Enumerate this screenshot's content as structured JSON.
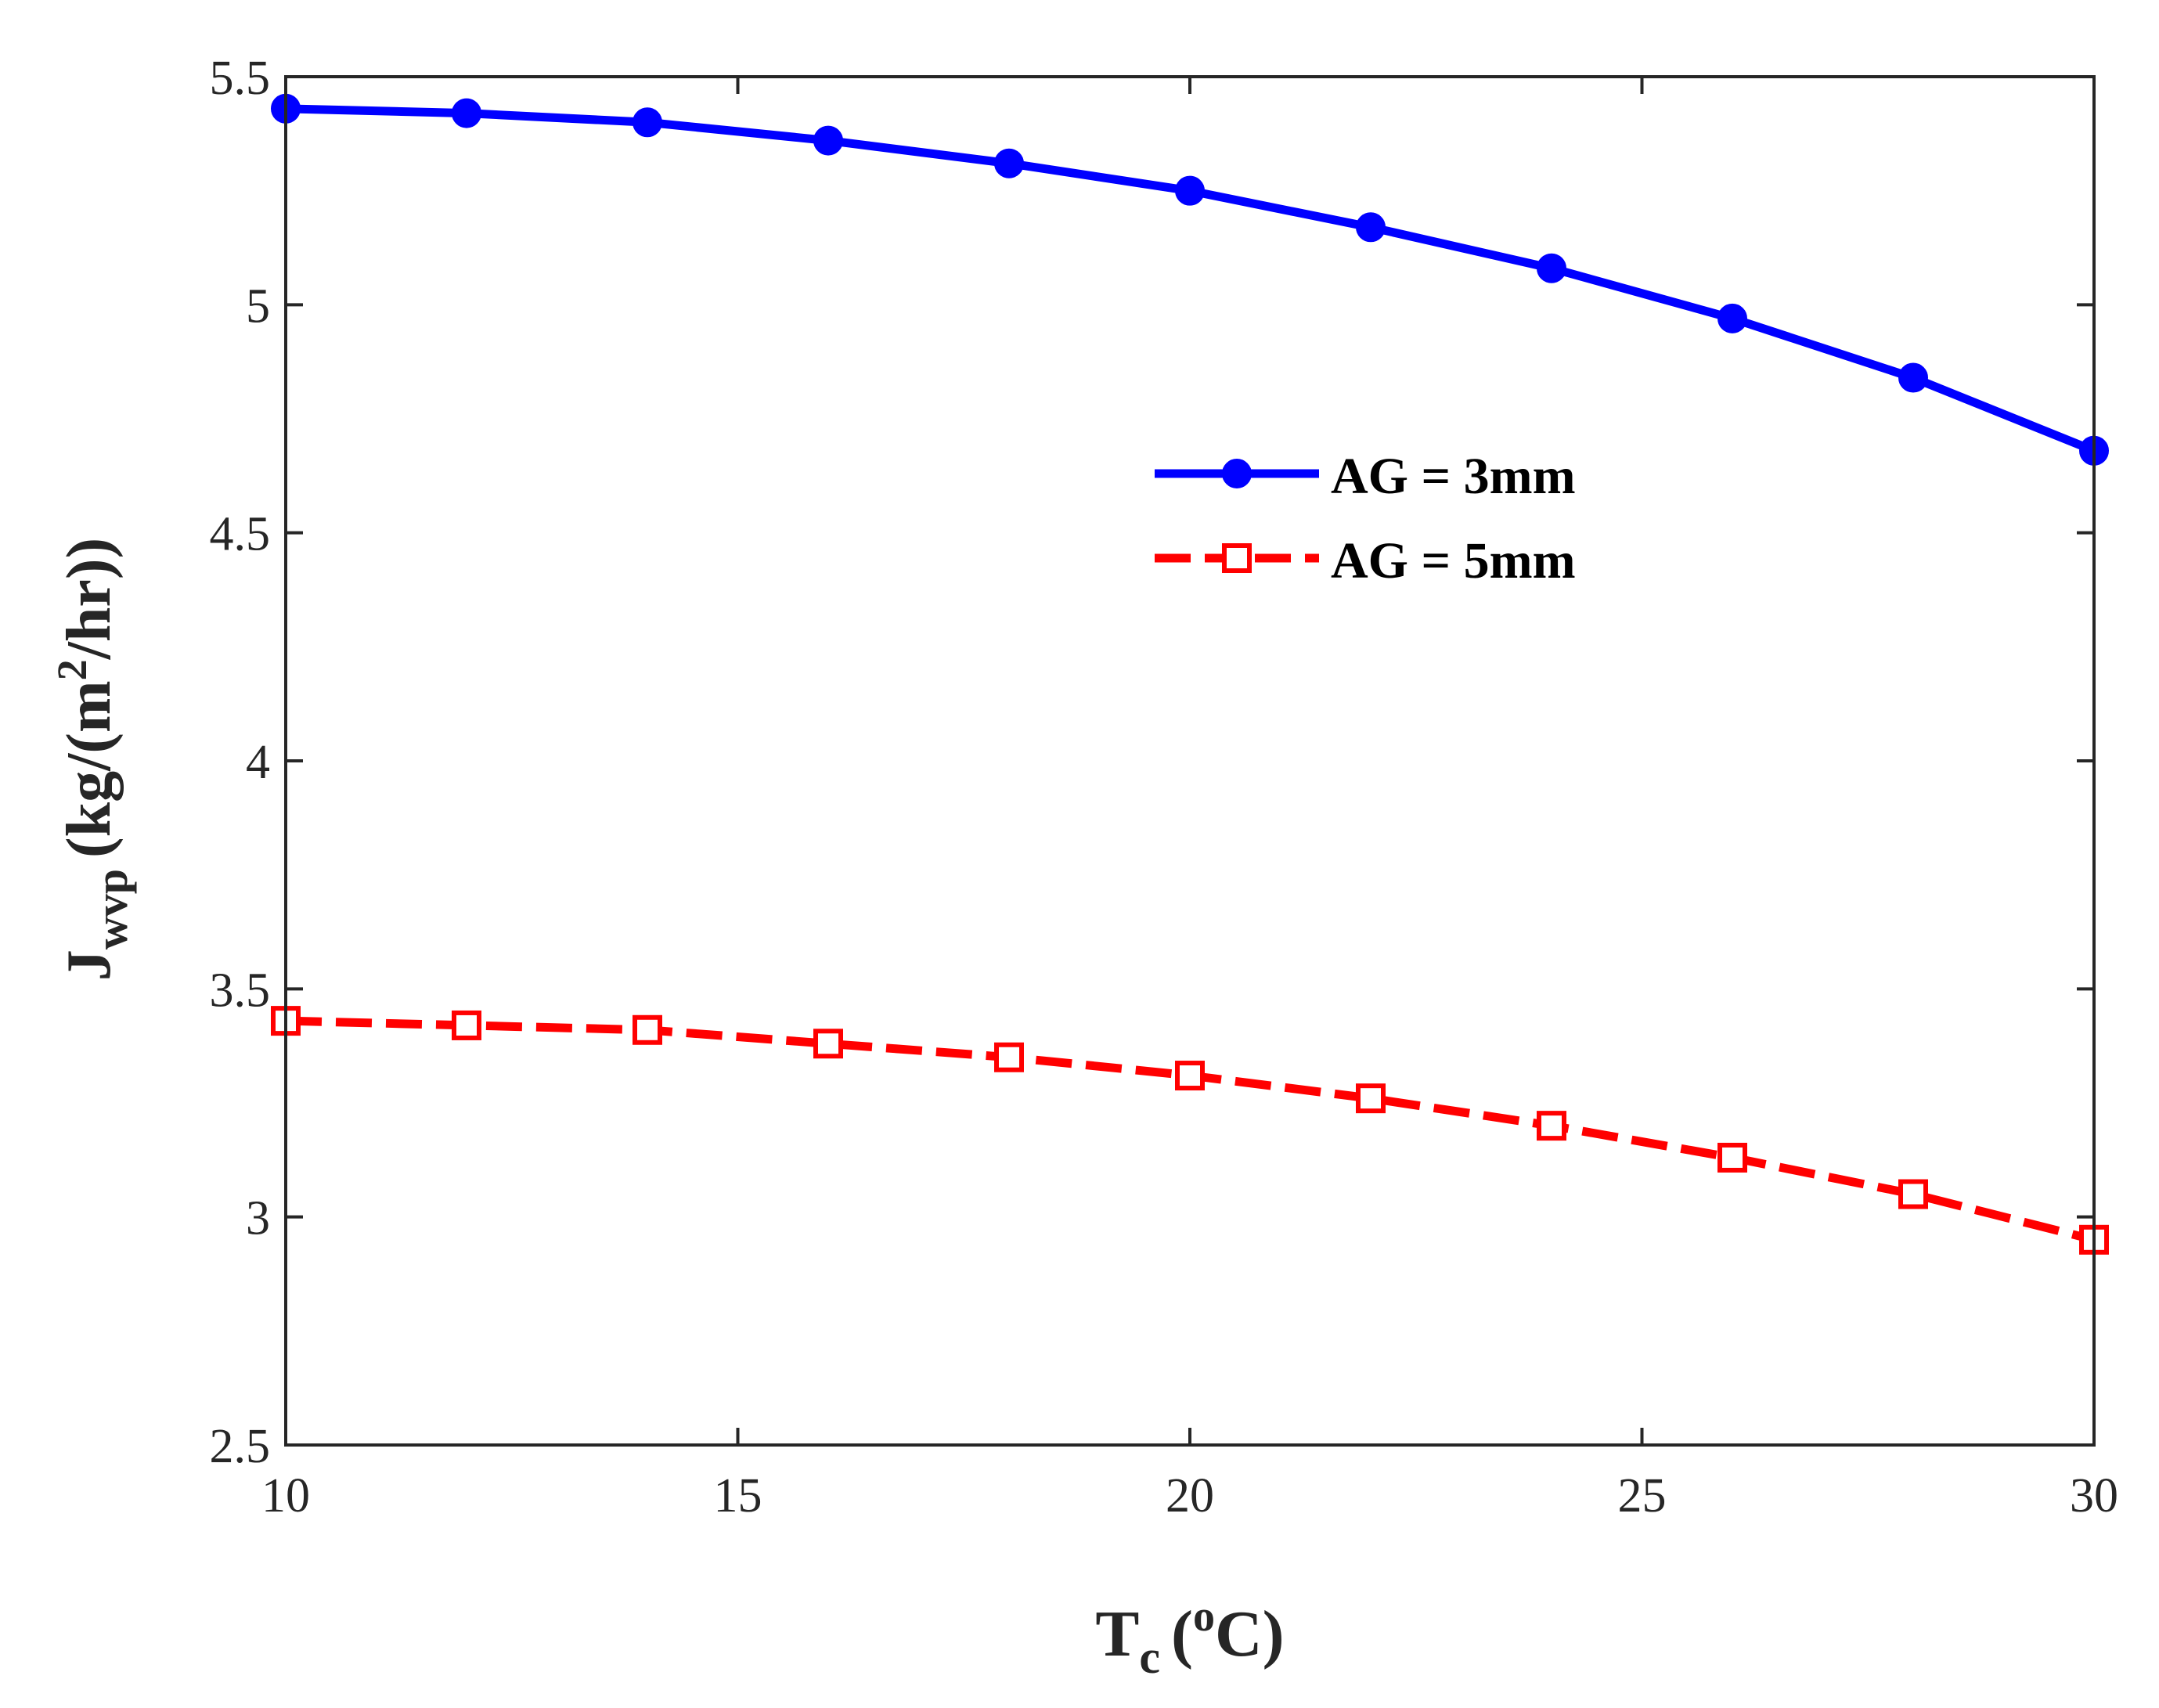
{
  "chart_data": {
    "type": "line",
    "title": "",
    "x": [
      10,
      12,
      14,
      16,
      18,
      20,
      22,
      24,
      26,
      28,
      30
    ],
    "series": [
      {
        "name": "AG = 3mm",
        "color": "#0000ff",
        "line_style": "solid",
        "marker": "circle",
        "values": [
          5.43,
          5.42,
          5.4,
          5.36,
          5.31,
          5.25,
          5.17,
          5.08,
          4.97,
          4.84,
          4.68
        ]
      },
      {
        "name": "AG = 5mm",
        "color": "#ff0000",
        "line_style": "dashed",
        "marker": "square",
        "values": [
          3.43,
          3.42,
          3.41,
          3.38,
          3.35,
          3.31,
          3.26,
          3.2,
          3.13,
          3.05,
          2.95
        ]
      }
    ],
    "xlabel": {
      "base": "T",
      "sub": "c",
      "pre": "(",
      "sup": "o",
      "post": "C)"
    },
    "ylabel": {
      "base": "J",
      "sub": "wvp",
      "pre": "(kg/(m",
      "sup": "2",
      "post": "/hr))"
    },
    "xlim": [
      10,
      30
    ],
    "ylim": [
      2.5,
      5.5
    ],
    "xticks": [
      10,
      15,
      20,
      25,
      30
    ],
    "xtick_labels": [
      "10",
      "15",
      "20",
      "25",
      "30"
    ],
    "yticks": [
      2.5,
      3,
      3.5,
      4,
      4.5,
      5,
      5.5
    ],
    "ytick_labels": [
      "2.5",
      "3",
      "3.5",
      "4",
      "4.5",
      "5",
      "5.5"
    ],
    "grid": false,
    "legend_position": "center-right"
  }
}
